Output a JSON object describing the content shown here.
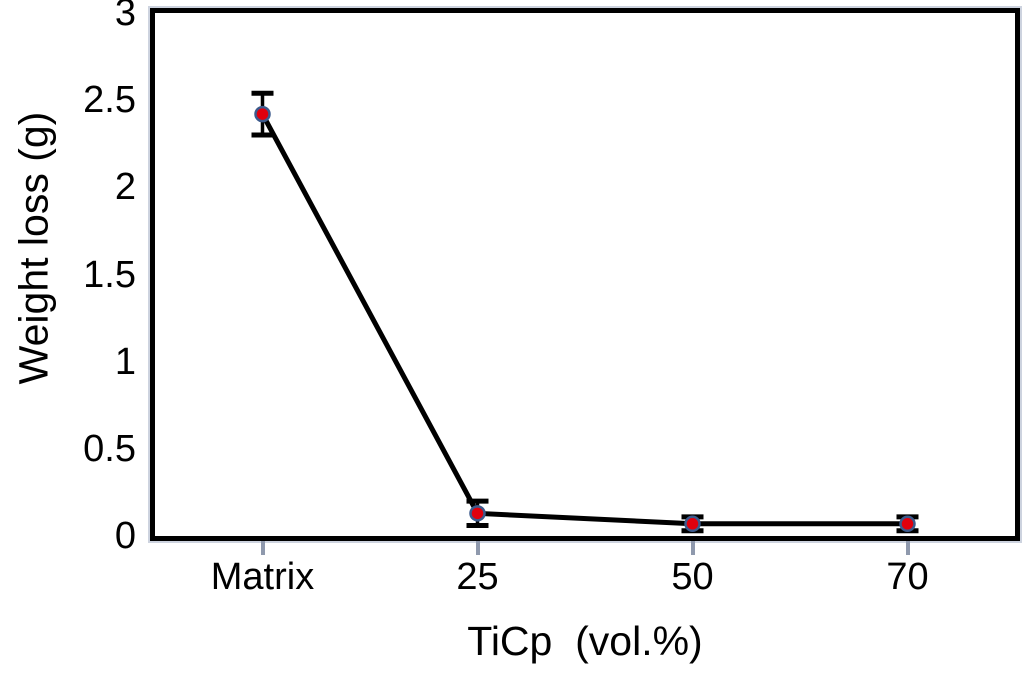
{
  "chart_data": {
    "type": "line",
    "categories": [
      "Matrix",
      "25",
      "50",
      "70"
    ],
    "series": [
      {
        "name": "Weight loss",
        "values": [
          2.42,
          0.13,
          0.07,
          0.07
        ],
        "errors": [
          0.12,
          0.07,
          0.04,
          0.04
        ]
      }
    ],
    "title": "",
    "xlabel": "TiCp  (vol.%)",
    "ylabel": "Weight loss (g)",
    "ylim": [
      0,
      3
    ],
    "yticks": [
      0,
      0.5,
      1,
      1.5,
      2,
      2.5,
      3
    ],
    "grid": false,
    "legend": "none",
    "colors": {
      "line": "#000000",
      "marker_fill": "#e0000d",
      "marker_stroke": "#3c5a8c",
      "error_bar": "#000000",
      "frame": "#000000",
      "tick": "#8f99ad"
    }
  }
}
